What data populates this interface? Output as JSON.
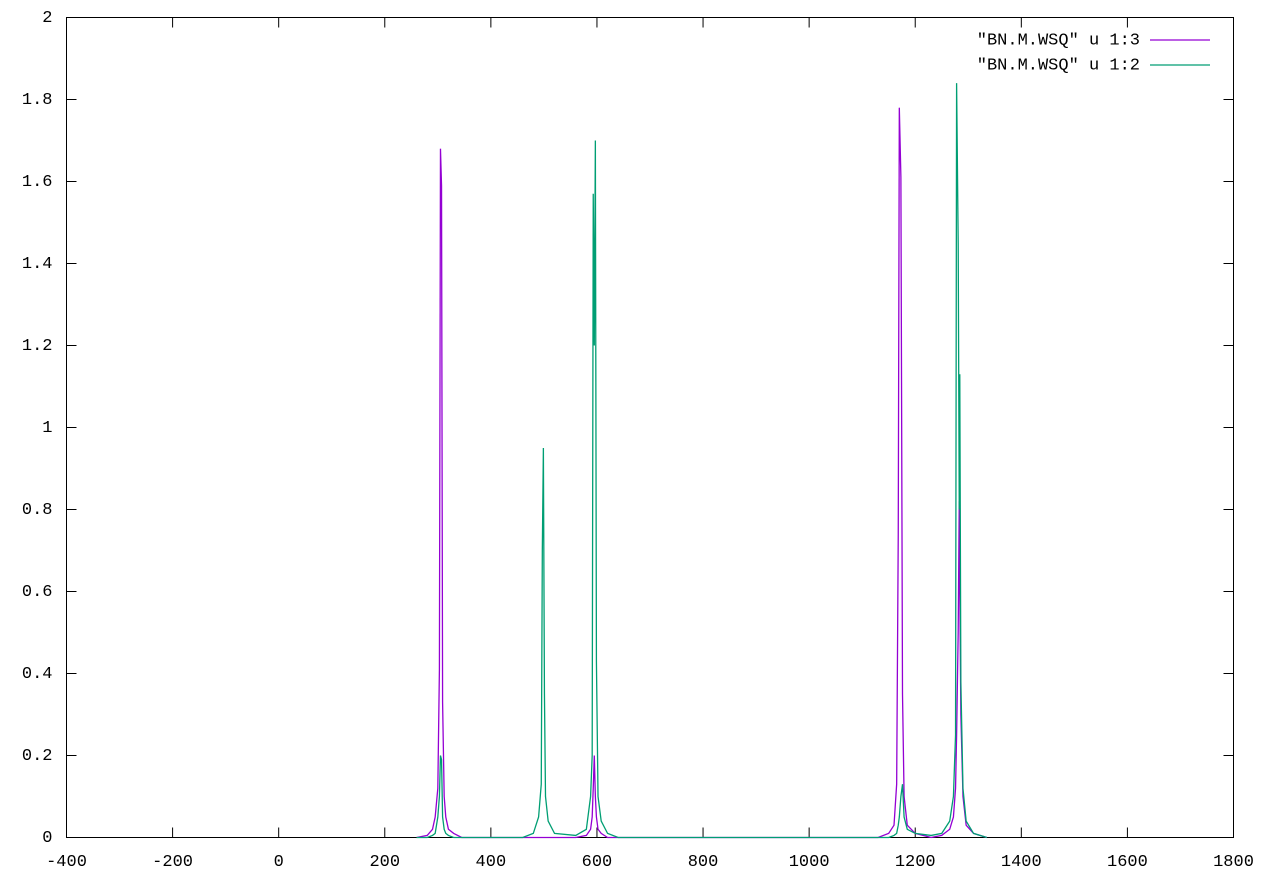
{
  "chart_data": {
    "type": "line",
    "x": [
      260,
      280,
      290,
      295,
      300,
      303,
      305,
      307,
      309,
      312,
      315,
      320,
      330,
      345,
      460,
      480,
      490,
      495,
      497,
      499,
      501,
      503,
      508,
      520,
      560,
      580,
      588,
      591,
      593,
      595,
      597,
      599,
      602,
      608,
      620,
      640,
      1130,
      1150,
      1160,
      1165,
      1168,
      1170,
      1173,
      1176,
      1179,
      1185,
      1200,
      1230,
      1250,
      1265,
      1272,
      1276,
      1278,
      1281,
      1283,
      1284,
      1286,
      1290,
      1296,
      1310,
      1335
    ],
    "series": [
      {
        "name": "\"BN.M.WSQ\" u 1:3",
        "color": "#9400d3",
        "values": [
          0,
          0.005,
          0.02,
          0.05,
          0.12,
          0.41,
          1.68,
          1.59,
          0.33,
          0.1,
          0.05,
          0.02,
          0.01,
          0,
          0,
          0,
          0,
          0,
          0,
          0,
          0,
          0,
          0,
          0,
          0,
          0.005,
          0.02,
          0.05,
          0.12,
          0.2,
          0.1,
          0.05,
          0.02,
          0.01,
          0,
          0,
          0,
          0.01,
          0.03,
          0.13,
          0.74,
          1.78,
          1.61,
          0.35,
          0.1,
          0.03,
          0.01,
          0,
          0.005,
          0.02,
          0.05,
          0.12,
          0.25,
          0.5,
          0.82,
          0.6,
          0.3,
          0.1,
          0.03,
          0.01,
          0
        ]
      },
      {
        "name": "\"BN.M.WSQ\" u 1:2",
        "color": "#009e73",
        "values": [
          0,
          0,
          0.005,
          0.01,
          0.05,
          0.1,
          0.2,
          0.19,
          0.05,
          0.02,
          0.01,
          0.005,
          0,
          0,
          0,
          0.01,
          0.05,
          0.13,
          0.7,
          0.95,
          0.35,
          0.1,
          0.04,
          0.01,
          0.005,
          0.02,
          0.1,
          0.2,
          1.57,
          1.2,
          1.7,
          0.43,
          0.1,
          0.04,
          0.01,
          0,
          0,
          0,
          0.005,
          0.01,
          0.03,
          0.05,
          0.1,
          0.13,
          0.05,
          0.02,
          0.01,
          0.005,
          0.01,
          0.04,
          0.1,
          0.25,
          1.84,
          1.45,
          0.8,
          1.13,
          0.38,
          0.12,
          0.04,
          0.01,
          0
        ]
      }
    ],
    "xlim": [
      -400,
      1800
    ],
    "xticks": [
      -400,
      -200,
      0,
      200,
      400,
      600,
      800,
      1000,
      1200,
      1400,
      1600,
      1800
    ],
    "ylim": [
      0,
      2
    ],
    "yticks": [
      0,
      0.2,
      0.4,
      0.6,
      0.8,
      1,
      1.2,
      1.4,
      1.6,
      1.8,
      2
    ],
    "grid": false,
    "legend": "top-right"
  }
}
